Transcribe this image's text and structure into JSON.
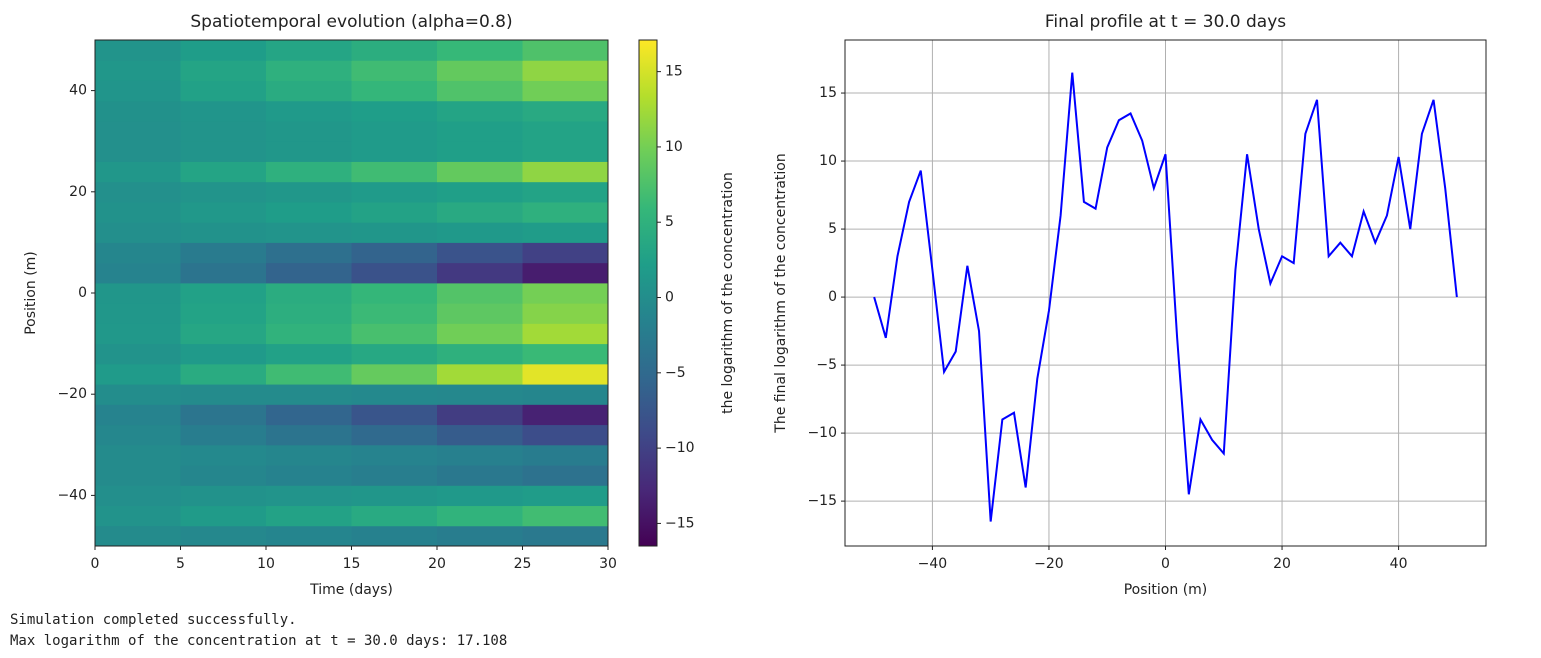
{
  "chart_data": [
    {
      "type": "heatmap",
      "title": "Spatiotemporal evolution (alpha=0.8)",
      "x_label": "Time (days)",
      "y_label": "Position (m)",
      "colorbar_label": "the logarithm of the concentration",
      "colormap": "viridis",
      "x_edges": [
        0,
        5,
        10,
        15,
        20,
        25,
        30
      ],
      "y_edges": [
        -50,
        -46,
        -42,
        -38,
        -34,
        -30,
        -26,
        -22,
        -18,
        -14,
        -10,
        -6,
        -2,
        2,
        6,
        10,
        14,
        18,
        22,
        26,
        30,
        34,
        38,
        42,
        46,
        50
      ],
      "z": [
        [
          -0.3,
          -0.8,
          -1.2,
          -1.7,
          -2.3,
          -2.9
        ],
        [
          0.7,
          1.8,
          2.8,
          3.9,
          5.3,
          6.7
        ],
        [
          0.2,
          0.5,
          0.8,
          1.1,
          1.5,
          1.9
        ],
        [
          -0.4,
          -1,
          -1.6,
          -2.2,
          -3,
          -3.8
        ],
        [
          -0.3,
          -0.6,
          -1,
          -1.4,
          -1.9,
          -2.4
        ],
        [
          -0.9,
          -2.3,
          -3.6,
          -5,
          -6.8,
          -8.6
        ],
        [
          -1.4,
          -3.5,
          -5.6,
          -7.7,
          -10.5,
          -13.3
        ],
        [
          -0.1,
          -0.3,
          -0.4,
          -0.6,
          -0.8,
          -1
        ],
        [
          1.7,
          4.1,
          6.6,
          9.1,
          12.4,
          15.7
        ],
        [
          0.7,
          1.6,
          2.6,
          3.6,
          4.9,
          6.2
        ],
        [
          1.3,
          3.3,
          5.2,
          7.2,
          9.8,
          12.4
        ],
        [
          1.2,
          2.9,
          4.6,
          6.3,
          8.6,
          10.9
        ],
        [
          1.1,
          2.6,
          4.2,
          5.8,
          7.9,
          10
        ],
        [
          -1.5,
          -3.6,
          -5.8,
          -8,
          -10.9,
          -13.8
        ],
        [
          -1.1,
          -2.6,
          -4.2,
          -5.8,
          -7.9,
          -10
        ],
        [
          0.2,
          0.5,
          0.8,
          1.1,
          1.5,
          1.9
        ],
        [
          0.5,
          1.3,
          2,
          2.8,
          3.8,
          4.8
        ],
        [
          0.3,
          0.8,
          1.2,
          1.7,
          2.3,
          2.9
        ],
        [
          1.2,
          3,
          4.8,
          6.6,
          9,
          11.4
        ],
        [
          0.3,
          0.8,
          1.2,
          1.7,
          2.3,
          2.9
        ],
        [
          0.3,
          0.8,
          1.2,
          1.7,
          2.3,
          2.9
        ],
        [
          0.4,
          1,
          1.6,
          2.2,
          3,
          3.8
        ],
        [
          1,
          2.6,
          4.1,
          5.7,
          7.7,
          9.8
        ],
        [
          1.2,
          3,
          4.8,
          6.6,
          9,
          11.4
        ],
        [
          0.8,
          2,
          3.2,
          4.4,
          6,
          7.6
        ]
      ],
      "xlim": [
        0,
        30
      ],
      "ylim": [
        -50,
        50
      ],
      "zlim": [
        -16.5,
        17.1
      ],
      "xticks": [
        0,
        5,
        10,
        15,
        20,
        25,
        30
      ],
      "yticks": [
        {
          "value": -40,
          "label": "−40"
        },
        {
          "value": -20,
          "label": "−20"
        },
        0,
        20,
        40
      ],
      "zticks": [
        {
          "value": -15,
          "label": "−15"
        },
        {
          "value": -10,
          "label": "−10"
        },
        {
          "value": -5,
          "label": "−5"
        },
        0,
        5,
        10,
        15
      ]
    },
    {
      "type": "line",
      "title": "Final profile at t = 30.0 days",
      "x_label": "Position (m)",
      "y_label": "The final  logarithm of the concentration",
      "x": [
        -50,
        -48,
        -46,
        -44,
        -42,
        -40,
        -38,
        -36,
        -34,
        -32,
        -30,
        -28,
        -26,
        -24,
        -22,
        -20,
        -18,
        -16,
        -14,
        -12,
        -10,
        -8,
        -6,
        -4,
        -2,
        0,
        2,
        4,
        6,
        8,
        10,
        12,
        14,
        16,
        18,
        20,
        22,
        24,
        26,
        28,
        30,
        32,
        34,
        36,
        38,
        40,
        42,
        44,
        46,
        48,
        50
      ],
      "series": [
        {
          "color": "#0000ff",
          "values": [
            0,
            -3,
            3,
            7,
            9.3,
            2,
            -5.5,
            -4,
            2.3,
            -2.5,
            -16.5,
            -9,
            -8.5,
            -14,
            -6,
            -1,
            6,
            16.5,
            7,
            6.5,
            11,
            13,
            13.5,
            11.5,
            8,
            10.5,
            -3,
            -14.5,
            -9,
            -10.5,
            -11.5,
            2,
            10.5,
            5,
            1,
            3,
            2.5,
            12,
            14.5,
            3,
            4,
            3,
            6.3,
            4,
            6,
            10.3,
            5,
            12,
            14.5,
            8,
            0
          ]
        }
      ],
      "xlim": [
        -55,
        55
      ],
      "ylim": [
        -18.3,
        18.9
      ],
      "grid": true,
      "xticks": [
        {
          "value": -40,
          "label": "−40"
        },
        {
          "value": -20,
          "label": "−20"
        },
        0,
        20,
        40
      ],
      "yticks": [
        {
          "value": -15,
          "label": "−15"
        },
        {
          "value": -10,
          "label": "−10"
        },
        {
          "value": -5,
          "label": "−5"
        },
        0,
        5,
        10,
        15
      ]
    }
  ],
  "output": [
    "Simulation completed successfully.",
    "Max logarithm of the concentration at t = 30.0 days: 17.108"
  ]
}
